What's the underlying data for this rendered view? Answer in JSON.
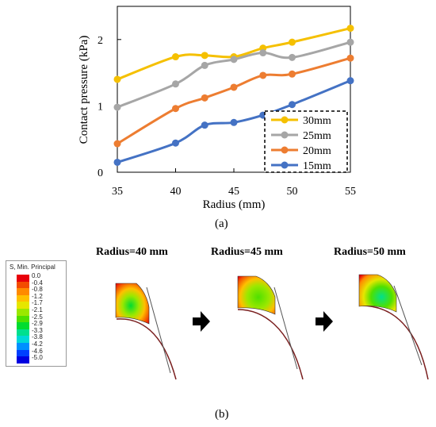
{
  "chart_data": {
    "type": "line",
    "xlabel": "Radius (mm)",
    "ylabel": "Contact pressure (kPa)",
    "xlim": [
      35,
      55
    ],
    "ylim": [
      0,
      2.5
    ],
    "xticks": [
      35,
      40,
      45,
      50,
      55
    ],
    "yticks": [
      0,
      1,
      2
    ],
    "legend_placement": "bottom-right",
    "legend_border": "dashed",
    "grid": false,
    "x": [
      35,
      40,
      42.5,
      45,
      47.5,
      50,
      55
    ],
    "series": [
      {
        "name": "30mm",
        "color": "#F5C000",
        "values": [
          1.4,
          1.74,
          1.76,
          1.74,
          1.87,
          1.96,
          2.17
        ]
      },
      {
        "name": "25mm",
        "color": "#A6A6A6",
        "values": [
          0.98,
          1.33,
          1.61,
          1.7,
          1.8,
          1.73,
          1.96
        ]
      },
      {
        "name": "20mm",
        "color": "#ED7D31",
        "values": [
          0.43,
          0.96,
          1.12,
          1.28,
          1.46,
          1.48,
          1.72
        ]
      },
      {
        "name": "15mm",
        "color": "#4472C4",
        "values": [
          0.15,
          0.44,
          0.71,
          0.75,
          0.86,
          1.02,
          1.38
        ]
      }
    ]
  },
  "captions": {
    "a": "(a)",
    "b": "(b)"
  },
  "contour_legend": {
    "title": "S, Min. Principal",
    "levels": [
      "0.0",
      "-0.4",
      "-0.8",
      "-1.2",
      "-1.7",
      "-2.1",
      "-2.5",
      "-2.9",
      "-3.3",
      "-3.8",
      "-4.2",
      "-4.6",
      "-5.0"
    ],
    "colors": [
      "#E8000A",
      "#F34C00",
      "#FF8A00",
      "#FFC000",
      "#E6E600",
      "#9BE800",
      "#4FE000",
      "#00DC30",
      "#00E08E",
      "#00D8D8",
      "#0090FF",
      "#0040FF",
      "#0000E0"
    ]
  },
  "fea_panels": [
    {
      "title": "Radius=40 mm"
    },
    {
      "title": "Radius=45 mm"
    },
    {
      "title": "Radius=50 mm"
    }
  ]
}
